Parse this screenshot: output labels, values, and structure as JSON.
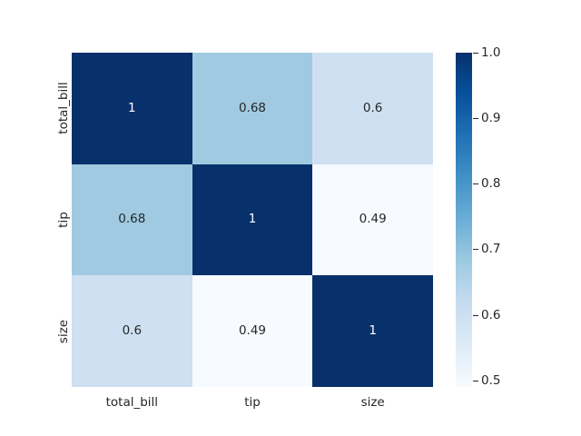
{
  "figure": {
    "background_color": "#ffffff",
    "text_color": "#262626"
  },
  "chart_data": {
    "type": "heatmap",
    "title": "",
    "xlabel": "",
    "ylabel": "",
    "categories": [
      "total_bill",
      "tip",
      "size"
    ],
    "matrix": [
      [
        1.0,
        0.68,
        0.6
      ],
      [
        0.68,
        1.0,
        0.49
      ],
      [
        0.6,
        0.49,
        1.0
      ]
    ],
    "cell_labels": [
      [
        "1",
        "0.68",
        "0.6"
      ],
      [
        "0.68",
        "1",
        "0.49"
      ],
      [
        "0.6",
        "0.49",
        "1"
      ]
    ],
    "cell_colors": [
      [
        "#08306b",
        "#9fcae1",
        "#cee0f1"
      ],
      [
        "#9fcae1",
        "#08306b",
        "#f7fbff"
      ],
      [
        "#cee0f1",
        "#f7fbff",
        "#08306b"
      ]
    ],
    "cell_text_colors": [
      [
        "#ffffff",
        "#262626",
        "#262626"
      ],
      [
        "#262626",
        "#ffffff",
        "#262626"
      ],
      [
        "#262626",
        "#262626",
        "#ffffff"
      ]
    ],
    "colormap": "Blues",
    "vmin": 0.49,
    "vmax": 1.0,
    "grid": false,
    "legend_position": "right-colorbar",
    "colorbar": {
      "tick_labels": [
        "1.0",
        "0.9",
        "0.8",
        "0.7",
        "0.6",
        "0.5"
      ],
      "tick_values": [
        1.0,
        0.9,
        0.8,
        0.7,
        0.6,
        0.5
      ],
      "gradient_top_to_bottom": [
        "#08306b",
        "#08519c",
        "#2171b5",
        "#4292c6",
        "#6baed6",
        "#9ecae1",
        "#c6dbef",
        "#deebf7",
        "#f7fbff"
      ]
    }
  }
}
